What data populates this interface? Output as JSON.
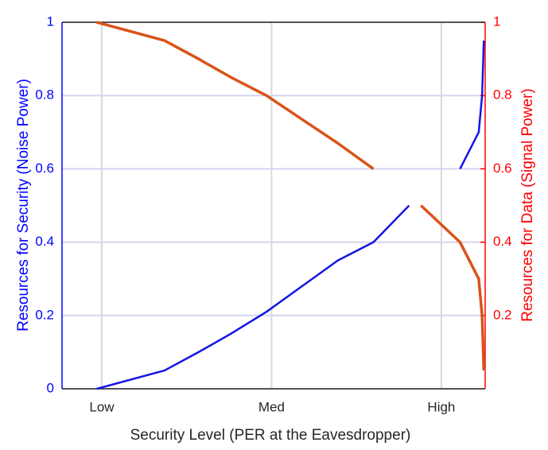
{
  "chart_data": {
    "type": "line",
    "xlabel": "Security Level (PER at the Eavesdropper)",
    "ylabel": "Resources for Security (Noise Power)",
    "y2label": "Resources for Data (Signal Power)",
    "x": [
      -0.03,
      0.37,
      0.57,
      0.76,
      0.97,
      1.18,
      1.39,
      1.6,
      1.81,
      1.88,
      2.11,
      2.22,
      2.24,
      2.25
    ],
    "series": [
      {
        "name": "Resources for Security (Noise Power)",
        "color": "#1414e6",
        "axis": "y",
        "values": [
          0,
          0.05,
          0.1,
          0.15,
          0.21,
          0.28,
          0.35,
          0.4,
          0.5,
          null,
          0.6,
          0.7,
          0.8,
          0.95
        ]
      },
      {
        "name": "Resources for Data (Signal Power)",
        "color": "#d95319",
        "axis": "y2",
        "values": [
          1.0,
          0.95,
          0.9,
          0.85,
          0.8,
          0.735,
          0.67,
          0.6,
          null,
          0.5,
          0.4,
          0.3,
          0.2,
          0.05
        ]
      }
    ],
    "xlim": [
      -0.234,
      2.258
    ],
    "xticks": [
      {
        "value": 0,
        "label": "Low"
      },
      {
        "value": 1,
        "label": "Med"
      },
      {
        "value": 2,
        "label": "High"
      }
    ],
    "ylim": [
      0,
      1
    ],
    "yticks": [
      0,
      0.2,
      0.4,
      0.6,
      0.8,
      1
    ],
    "y2lim": [
      0,
      1
    ],
    "y2ticks": [
      0.2,
      0.4,
      0.6,
      0.8,
      1
    ],
    "grid": true,
    "ycolor": "#0000ff",
    "y2color": "#ff0000"
  }
}
